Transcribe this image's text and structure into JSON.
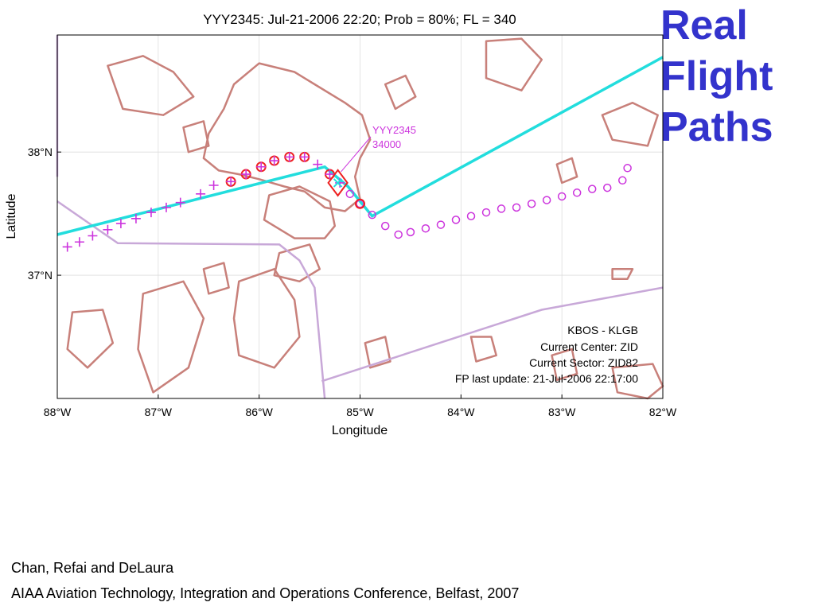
{
  "slide": {
    "title_lines": [
      "Real",
      "Flight",
      "Paths"
    ],
    "title_color": "#3333cc",
    "citation_authors": "Chan, Refai and DeLaura",
    "citation_venue": "AIAA Aviation Technology, Integration and Operations Conference, Belfast, 2007"
  },
  "chart_data": {
    "type": "scatter",
    "title": "YYY2345: Jul-21-2006 22:20; Prob = 80%; FL = 340",
    "xlabel": "Longitude",
    "ylabel": "Latitude",
    "xlim": [
      -88,
      -82
    ],
    "ylim": [
      36,
      38.95
    ],
    "x_ticks": [
      {
        "value": -88,
        "label": "88°W"
      },
      {
        "value": -87,
        "label": "87°W"
      },
      {
        "value": -86,
        "label": "86°W"
      },
      {
        "value": -85,
        "label": "85°W"
      },
      {
        "value": -84,
        "label": "84°W"
      },
      {
        "value": -83,
        "label": "83°W"
      },
      {
        "value": -82,
        "label": "82°W"
      }
    ],
    "y_ticks": [
      {
        "value": 38,
        "label": "38°N"
      },
      {
        "value": 37,
        "label": "37°N"
      }
    ],
    "grid": true,
    "aircraft_label": [
      "YYY2345",
      "34000"
    ],
    "info_box": [
      "KBOS - KLGB",
      "Current Center: ZID",
      "Current Sector: ZID82",
      "FP last update: 21-Jul-2006 22:17:00"
    ],
    "colors": {
      "flight_plan": "#22dddd",
      "history": "#cc33dd",
      "deviation": "#ee2222",
      "projection": "#cc33dd",
      "weather": "#c8807a",
      "boundary": "#c8a8d8",
      "aircraft": "#ee2222"
    },
    "aircraft_position": {
      "x": -85.22,
      "y": 37.75
    },
    "flight_plan": [
      {
        "x": -88.0,
        "y": 37.33
      },
      {
        "x": -85.35,
        "y": 37.88
      },
      {
        "x": -85.12,
        "y": 37.72
      },
      {
        "x": -84.88,
        "y": 37.48
      },
      {
        "x": -82.0,
        "y": 38.77
      }
    ],
    "history_points": [
      {
        "x": -87.9,
        "y": 37.23
      },
      {
        "x": -87.78,
        "y": 37.27
      },
      {
        "x": -87.65,
        "y": 37.32
      },
      {
        "x": -87.5,
        "y": 37.37
      },
      {
        "x": -87.37,
        "y": 37.42
      },
      {
        "x": -87.22,
        "y": 37.46
      },
      {
        "x": -87.07,
        "y": 37.51
      },
      {
        "x": -86.92,
        "y": 37.55
      },
      {
        "x": -86.78,
        "y": 37.59
      },
      {
        "x": -86.58,
        "y": 37.66
      },
      {
        "x": -86.45,
        "y": 37.73
      },
      {
        "x": -86.28,
        "y": 37.76
      },
      {
        "x": -86.13,
        "y": 37.82
      },
      {
        "x": -85.98,
        "y": 37.88
      },
      {
        "x": -85.85,
        "y": 37.93
      },
      {
        "x": -85.7,
        "y": 37.96
      },
      {
        "x": -85.55,
        "y": 37.96
      },
      {
        "x": -85.42,
        "y": 37.9
      },
      {
        "x": -85.3,
        "y": 37.82
      },
      {
        "x": -85.2,
        "y": 37.75
      }
    ],
    "deviation_points": [
      {
        "x": -86.28,
        "y": 37.76
      },
      {
        "x": -86.13,
        "y": 37.82
      },
      {
        "x": -85.98,
        "y": 37.88
      },
      {
        "x": -85.85,
        "y": 37.93
      },
      {
        "x": -85.7,
        "y": 37.96
      },
      {
        "x": -85.55,
        "y": 37.96
      },
      {
        "x": -85.3,
        "y": 37.82
      },
      {
        "x": -85.0,
        "y": 37.58
      }
    ],
    "projected_points": [
      {
        "x": -85.1,
        "y": 37.66
      },
      {
        "x": -85.0,
        "y": 37.58
      },
      {
        "x": -84.88,
        "y": 37.49
      },
      {
        "x": -84.75,
        "y": 37.4
      },
      {
        "x": -84.62,
        "y": 37.33
      },
      {
        "x": -84.5,
        "y": 37.35
      },
      {
        "x": -84.35,
        "y": 37.38
      },
      {
        "x": -84.2,
        "y": 37.41
      },
      {
        "x": -84.05,
        "y": 37.45
      },
      {
        "x": -83.9,
        "y": 37.48
      },
      {
        "x": -83.75,
        "y": 37.51
      },
      {
        "x": -83.6,
        "y": 37.54
      },
      {
        "x": -83.45,
        "y": 37.55
      },
      {
        "x": -83.3,
        "y": 37.58
      },
      {
        "x": -83.15,
        "y": 37.61
      },
      {
        "x": -83.0,
        "y": 37.64
      },
      {
        "x": -82.85,
        "y": 37.67
      },
      {
        "x": -82.7,
        "y": 37.7
      },
      {
        "x": -82.55,
        "y": 37.71
      },
      {
        "x": -82.4,
        "y": 37.77
      },
      {
        "x": -82.35,
        "y": 37.87
      }
    ],
    "boundaries": [
      [
        {
          "x": -88.0,
          "y": 37.6
        },
        {
          "x": -87.4,
          "y": 37.26
        },
        {
          "x": -85.8,
          "y": 37.25
        },
        {
          "x": -85.6,
          "y": 37.12
        },
        {
          "x": -85.45,
          "y": 36.9
        },
        {
          "x": -85.35,
          "y": 36.0
        }
      ],
      [
        {
          "x": -85.38,
          "y": 36.14
        },
        {
          "x": -83.2,
          "y": 36.72
        },
        {
          "x": -82.0,
          "y": 36.9
        }
      ],
      [
        {
          "x": -88.0,
          "y": 38.95
        },
        {
          "x": -88.0,
          "y": 37.8
        }
      ]
    ],
    "weather_cells": [
      [
        {
          "x": -86.25,
          "y": 38.55
        },
        {
          "x": -86.0,
          "y": 38.72
        },
        {
          "x": -85.65,
          "y": 38.65
        },
        {
          "x": -85.45,
          "y": 38.55
        },
        {
          "x": -85.15,
          "y": 38.4
        },
        {
          "x": -84.98,
          "y": 38.3
        },
        {
          "x": -84.9,
          "y": 38.1
        },
        {
          "x": -85.0,
          "y": 37.95
        },
        {
          "x": -85.05,
          "y": 37.8
        },
        {
          "x": -85.0,
          "y": 37.62
        },
        {
          "x": -85.15,
          "y": 37.52
        },
        {
          "x": -85.35,
          "y": 37.55
        },
        {
          "x": -85.55,
          "y": 37.68
        },
        {
          "x": -85.75,
          "y": 37.72
        },
        {
          "x": -86.0,
          "y": 37.78
        },
        {
          "x": -86.2,
          "y": 37.82
        },
        {
          "x": -86.4,
          "y": 37.85
        },
        {
          "x": -86.55,
          "y": 37.95
        },
        {
          "x": -86.5,
          "y": 38.15
        },
        {
          "x": -86.35,
          "y": 38.35
        }
      ],
      [
        {
          "x": -85.9,
          "y": 37.65
        },
        {
          "x": -85.6,
          "y": 37.72
        },
        {
          "x": -85.3,
          "y": 37.6
        },
        {
          "x": -85.25,
          "y": 37.4
        },
        {
          "x": -85.35,
          "y": 37.3
        },
        {
          "x": -85.65,
          "y": 37.3
        },
        {
          "x": -85.95,
          "y": 37.45
        }
      ],
      [
        {
          "x": -85.8,
          "y": 37.18
        },
        {
          "x": -85.5,
          "y": 37.25
        },
        {
          "x": -85.4,
          "y": 37.05
        },
        {
          "x": -85.6,
          "y": 36.95
        },
        {
          "x": -85.85,
          "y": 37.0
        }
      ],
      [
        {
          "x": -86.2,
          "y": 36.95
        },
        {
          "x": -85.85,
          "y": 37.05
        },
        {
          "x": -85.65,
          "y": 36.8
        },
        {
          "x": -85.6,
          "y": 36.5
        },
        {
          "x": -85.85,
          "y": 36.25
        },
        {
          "x": -86.2,
          "y": 36.35
        },
        {
          "x": -86.25,
          "y": 36.65
        }
      ],
      [
        {
          "x": -87.15,
          "y": 36.85
        },
        {
          "x": -86.75,
          "y": 36.95
        },
        {
          "x": -86.55,
          "y": 36.65
        },
        {
          "x": -86.7,
          "y": 36.25
        },
        {
          "x": -87.05,
          "y": 36.05
        },
        {
          "x": -87.2,
          "y": 36.4
        }
      ],
      [
        {
          "x": -87.85,
          "y": 36.7
        },
        {
          "x": -87.55,
          "y": 36.72
        },
        {
          "x": -87.45,
          "y": 36.45
        },
        {
          "x": -87.7,
          "y": 36.25
        },
        {
          "x": -87.9,
          "y": 36.4
        }
      ],
      [
        {
          "x": -86.55,
          "y": 37.05
        },
        {
          "x": -86.35,
          "y": 37.1
        },
        {
          "x": -86.3,
          "y": 36.9
        },
        {
          "x": -86.5,
          "y": 36.85
        }
      ],
      [
        {
          "x": -87.5,
          "y": 38.7
        },
        {
          "x": -87.15,
          "y": 38.78
        },
        {
          "x": -86.85,
          "y": 38.65
        },
        {
          "x": -86.65,
          "y": 38.45
        },
        {
          "x": -86.95,
          "y": 38.3
        },
        {
          "x": -87.35,
          "y": 38.35
        }
      ],
      [
        {
          "x": -86.75,
          "y": 38.2
        },
        {
          "x": -86.55,
          "y": 38.25
        },
        {
          "x": -86.5,
          "y": 38.05
        },
        {
          "x": -86.7,
          "y": 38.0
        }
      ],
      [
        {
          "x": -84.75,
          "y": 38.55
        },
        {
          "x": -84.55,
          "y": 38.62
        },
        {
          "x": -84.45,
          "y": 38.45
        },
        {
          "x": -84.65,
          "y": 38.35
        }
      ],
      [
        {
          "x": -83.75,
          "y": 38.9
        },
        {
          "x": -83.4,
          "y": 38.92
        },
        {
          "x": -83.2,
          "y": 38.75
        },
        {
          "x": -83.4,
          "y": 38.5
        },
        {
          "x": -83.75,
          "y": 38.6
        }
      ],
      [
        {
          "x": -82.6,
          "y": 38.3
        },
        {
          "x": -82.3,
          "y": 38.4
        },
        {
          "x": -82.05,
          "y": 38.3
        },
        {
          "x": -82.15,
          "y": 38.05
        },
        {
          "x": -82.5,
          "y": 38.1
        }
      ],
      [
        {
          "x": -83.05,
          "y": 37.9
        },
        {
          "x": -82.9,
          "y": 37.95
        },
        {
          "x": -82.85,
          "y": 37.8
        },
        {
          "x": -83.0,
          "y": 37.75
        }
      ],
      [
        {
          "x": -82.5,
          "y": 37.05
        },
        {
          "x": -82.3,
          "y": 37.05
        },
        {
          "x": -82.35,
          "y": 36.97
        },
        {
          "x": -82.5,
          "y": 36.97
        }
      ],
      [
        {
          "x": -82.5,
          "y": 36.25
        },
        {
          "x": -82.1,
          "y": 36.28
        },
        {
          "x": -82.0,
          "y": 36.1
        },
        {
          "x": -82.15,
          "y": 36.0
        },
        {
          "x": -82.45,
          "y": 36.05
        }
      ],
      [
        {
          "x": -83.9,
          "y": 36.5
        },
        {
          "x": -83.7,
          "y": 36.5
        },
        {
          "x": -83.65,
          "y": 36.35
        },
        {
          "x": -83.85,
          "y": 36.3
        }
      ],
      [
        {
          "x": -84.95,
          "y": 36.45
        },
        {
          "x": -84.75,
          "y": 36.5
        },
        {
          "x": -84.7,
          "y": 36.3
        },
        {
          "x": -84.9,
          "y": 36.25
        }
      ],
      [
        {
          "x": -83.1,
          "y": 36.35
        },
        {
          "x": -82.9,
          "y": 36.4
        },
        {
          "x": -82.85,
          "y": 36.2
        },
        {
          "x": -83.05,
          "y": 36.15
        }
      ]
    ]
  }
}
